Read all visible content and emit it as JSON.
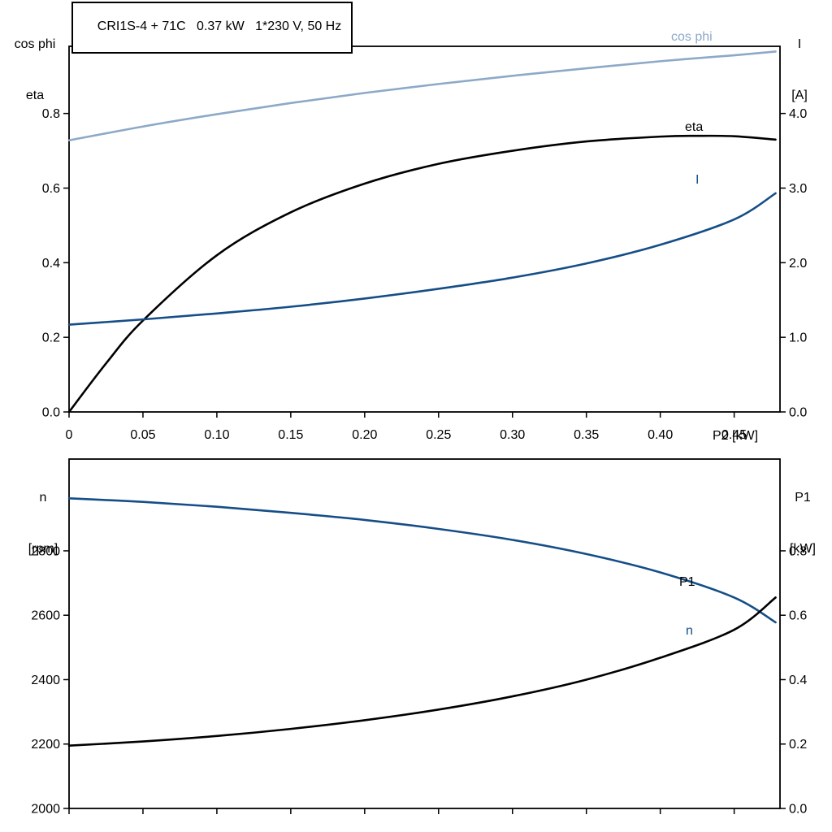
{
  "chart_data": [
    {
      "type": "line",
      "title": "CRI1S-4 + 71C   0.37 kW   1*230 V, 50 Hz",
      "x_axis": {
        "label": "P2 [kW]",
        "range": [
          0,
          0.481
        ],
        "ticks": [
          0,
          0.05,
          0.1,
          0.15,
          0.2,
          0.25,
          0.3,
          0.35,
          0.4,
          0.45
        ],
        "tick_labels": [
          "0",
          "0.05",
          "0.10",
          "0.15",
          "0.20",
          "0.25",
          "0.30",
          "0.35",
          "0.40",
          "0.45"
        ]
      },
      "y_left": {
        "header": [
          "cos phi",
          "eta"
        ],
        "range": [
          0,
          0.98
        ],
        "ticks": [
          0,
          0.2,
          0.4,
          0.6,
          0.8
        ],
        "tick_labels": [
          "0.0",
          "0.2",
          "0.4",
          "0.6",
          "0.8"
        ]
      },
      "y_right": {
        "header": [
          "I",
          "[A]"
        ],
        "range": [
          0,
          4.9
        ],
        "ticks": [
          0,
          1,
          2,
          3,
          4
        ],
        "tick_labels": [
          "0.0",
          "1.0",
          "2.0",
          "3.0",
          "4.0"
        ]
      },
      "series": [
        {
          "name": "cos phi",
          "axis": "left",
          "color": "#8da9c8",
          "x": [
            0,
            0.05,
            0.1,
            0.15,
            0.2,
            0.25,
            0.3,
            0.35,
            0.4,
            0.45,
            0.478
          ],
          "y": [
            0.728,
            0.765,
            0.798,
            0.828,
            0.855,
            0.879,
            0.901,
            0.921,
            0.94,
            0.956,
            0.966
          ]
        },
        {
          "name": "eta",
          "axis": "left",
          "color": "#000000",
          "x": [
            0,
            0.025,
            0.05,
            0.1,
            0.15,
            0.2,
            0.25,
            0.3,
            0.35,
            0.4,
            0.425,
            0.45,
            0.478
          ],
          "y": [
            0,
            0.13,
            0.245,
            0.42,
            0.535,
            0.612,
            0.665,
            0.7,
            0.725,
            0.738,
            0.74,
            0.739,
            0.73
          ]
        },
        {
          "name": "I",
          "axis": "right",
          "color": "#154e87",
          "x": [
            0,
            0.05,
            0.1,
            0.15,
            0.2,
            0.25,
            0.3,
            0.35,
            0.4,
            0.45,
            0.478
          ],
          "y": [
            1.17,
            1.24,
            1.32,
            1.41,
            1.52,
            1.65,
            1.8,
            1.99,
            2.24,
            2.58,
            2.93
          ]
        }
      ]
    },
    {
      "type": "line",
      "title": "",
      "x_axis": {
        "label": "",
        "range": [
          0,
          0.481
        ],
        "ticks": [
          0,
          0.05,
          0.1,
          0.15,
          0.2,
          0.25,
          0.3,
          0.35,
          0.4,
          0.45
        ],
        "tick_labels": []
      },
      "y_left": {
        "header": [
          "n",
          "[rpm]"
        ],
        "range": [
          2000,
          3085
        ],
        "ticks": [
          2000,
          2200,
          2400,
          2600,
          2800
        ],
        "tick_labels": [
          "2000",
          "2200",
          "2400",
          "2600",
          "2800"
        ]
      },
      "y_right": {
        "header": [
          "P1",
          "[kW]"
        ],
        "range": [
          0,
          1.085
        ],
        "ticks": [
          0,
          0.2,
          0.4,
          0.6,
          0.8
        ],
        "tick_labels": [
          "0.0",
          "0.2",
          "0.4",
          "0.6",
          "0.8"
        ]
      },
      "series": [
        {
          "name": "n",
          "axis": "left",
          "color": "#154e87",
          "x": [
            0,
            0.05,
            0.1,
            0.15,
            0.2,
            0.25,
            0.3,
            0.35,
            0.4,
            0.45,
            0.478
          ],
          "y": [
            2963,
            2952,
            2937,
            2918,
            2896,
            2868,
            2834,
            2790,
            2733,
            2655,
            2578
          ]
        },
        {
          "name": "P1",
          "axis": "right",
          "color": "#000000",
          "x": [
            0,
            0.05,
            0.1,
            0.15,
            0.2,
            0.25,
            0.3,
            0.35,
            0.4,
            0.45,
            0.478
          ],
          "y": [
            0.195,
            0.208,
            0.225,
            0.247,
            0.274,
            0.307,
            0.348,
            0.4,
            0.468,
            0.555,
            0.655
          ]
        }
      ]
    }
  ]
}
